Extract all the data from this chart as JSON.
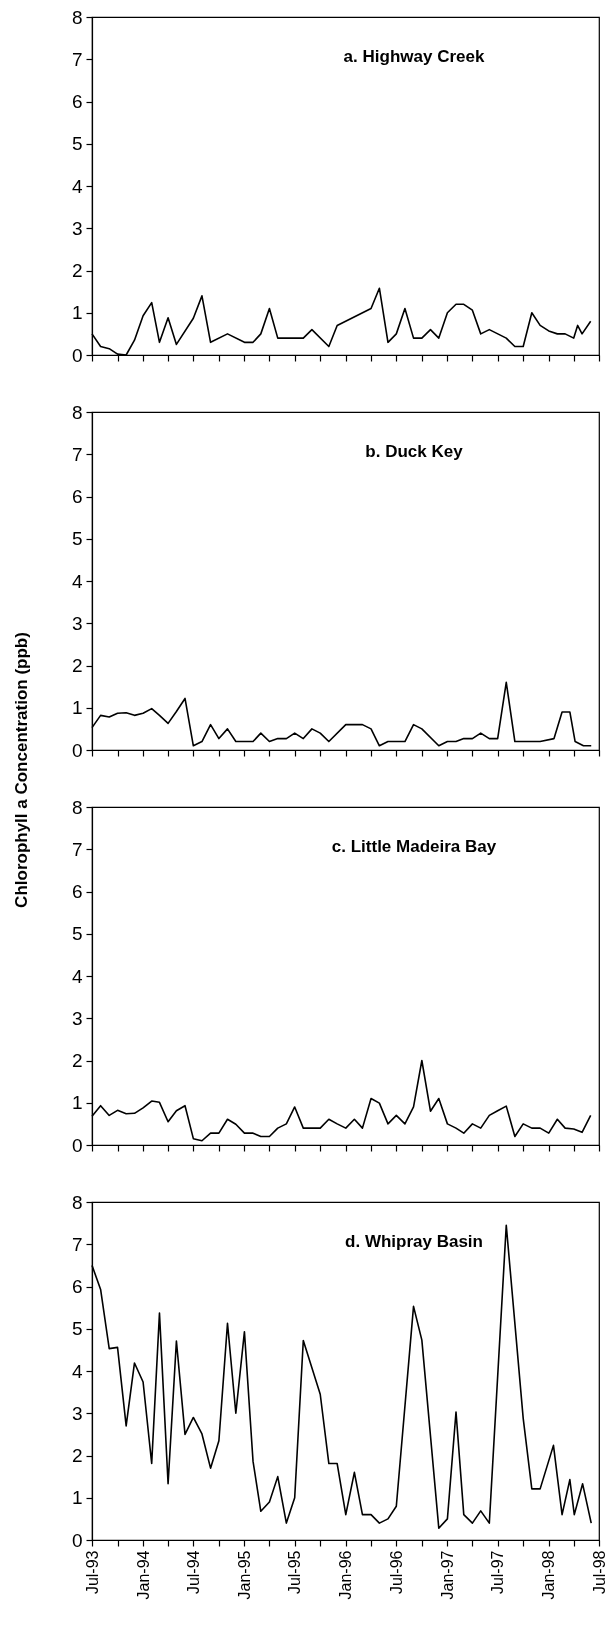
{
  "chart_data": [
    {
      "type": "line",
      "title": "a. Highway Creek",
      "tick_labels": "y",
      "ylim": [
        0,
        8
      ],
      "yticks": [
        0,
        1,
        2,
        3,
        4,
        5,
        6,
        7,
        8
      ],
      "xlim": [
        "1993-07",
        "1998-07"
      ],
      "xticks": [
        {
          "value": "1993-07",
          "label": null
        },
        {
          "value": "1993-10",
          "label": null
        },
        {
          "value": "1994-01",
          "label": null
        },
        {
          "value": "1994-04",
          "label": null
        },
        {
          "value": "1994-07",
          "label": null
        },
        {
          "value": "1994-10",
          "label": null
        },
        {
          "value": "1995-01",
          "label": null
        },
        {
          "value": "1995-04",
          "label": null
        },
        {
          "value": "1995-07",
          "label": null
        },
        {
          "value": "1995-10",
          "label": null
        },
        {
          "value": "1996-01",
          "label": null
        },
        {
          "value": "1996-04",
          "label": null
        },
        {
          "value": "1996-07",
          "label": null
        },
        {
          "value": "1996-10",
          "label": null
        },
        {
          "value": "1997-01",
          "label": null
        },
        {
          "value": "1997-04",
          "label": null
        },
        {
          "value": "1997-07",
          "label": null
        },
        {
          "value": "1997-10",
          "label": null
        },
        {
          "value": "1998-01",
          "label": null
        },
        {
          "value": "1998-04",
          "label": null
        },
        {
          "value": "1998-07",
          "label": null
        }
      ],
      "x": [
        "1993-07",
        "1993-08",
        "1993-09",
        "1993-10",
        "1993-11",
        "1993-12",
        "1994-01",
        "1994-02",
        "1994-03",
        "1994-04",
        "1994-05",
        "1994-07",
        "1994-08",
        "1994-09",
        "1994-11",
        "1995-01",
        "1995-02",
        "1995-03",
        "1995-04",
        "1995-05",
        "1995-08",
        "1995-09",
        "1995-11",
        "1995-12",
        "1996-04",
        "1996-05",
        "1996-06",
        "1996-07",
        "1996-08",
        "1996-09",
        "1996-10",
        "1996-11",
        "1996-12",
        "1997-01",
        "1997-02",
        "1997-03",
        "1997-04",
        "1997-05",
        "1997-06",
        "1997-08",
        "1997-09",
        "1997-10",
        "1997-11",
        "1997-12",
        "1998-01",
        "1998-02",
        "1998-03",
        "1998-04",
        "1998-04-15",
        "1998-05",
        "1998-06"
      ],
      "series": [
        {
          "color": "#000000",
          "values": [
            0.5,
            0.2,
            0.15,
            0.02,
            0,
            0.35,
            0.93,
            1.24,
            0.3,
            0.88,
            0.25,
            0.87,
            1.4,
            0.3,
            0.5,
            0.3,
            0.3,
            0.5,
            1.1,
            0.4,
            0.4,
            0.6,
            0.2,
            0.7,
            1.1,
            1.58,
            0.3,
            0.5,
            1.1,
            0.4,
            0.4,
            0.6,
            0.4,
            1.0,
            1.2,
            1.2,
            1.06,
            0.5,
            0.6,
            0.4,
            0.2,
            0.2,
            1.0,
            0.7,
            0.57,
            0.5,
            0.5,
            0.4,
            0.7,
            0.5,
            0.8
          ]
        }
      ]
    },
    {
      "type": "line",
      "title": "b. Duck Key",
      "ylabel": "Chlorophyll a Concentration (ppb)",
      "tick_labels": "y",
      "ylim": [
        0,
        8
      ],
      "yticks": [
        0,
        1,
        2,
        3,
        4,
        5,
        6,
        7,
        8
      ],
      "xlim": [
        "1993-07",
        "1998-07"
      ],
      "xticks": [
        {
          "value": "1993-07",
          "label": null
        },
        {
          "value": "1993-10",
          "label": null
        },
        {
          "value": "1994-01",
          "label": null
        },
        {
          "value": "1994-04",
          "label": null
        },
        {
          "value": "1994-07",
          "label": null
        },
        {
          "value": "1994-10",
          "label": null
        },
        {
          "value": "1995-01",
          "label": null
        },
        {
          "value": "1995-04",
          "label": null
        },
        {
          "value": "1995-07",
          "label": null
        },
        {
          "value": "1995-10",
          "label": null
        },
        {
          "value": "1996-01",
          "label": null
        },
        {
          "value": "1996-04",
          "label": null
        },
        {
          "value": "1996-07",
          "label": null
        },
        {
          "value": "1996-10",
          "label": null
        },
        {
          "value": "1997-01",
          "label": null
        },
        {
          "value": "1997-04",
          "label": null
        },
        {
          "value": "1997-07",
          "label": null
        },
        {
          "value": "1997-10",
          "label": null
        },
        {
          "value": "1998-01",
          "label": null
        },
        {
          "value": "1998-04",
          "label": null
        },
        {
          "value": "1998-07",
          "label": null
        }
      ],
      "x": [
        "1993-07",
        "1993-08",
        "1993-09",
        "1993-10",
        "1993-11",
        "1993-12",
        "1994-01",
        "1994-02",
        "1994-03",
        "1994-04",
        "1994-05",
        "1994-06",
        "1994-07",
        "1994-08",
        "1994-09",
        "1994-10",
        "1994-11",
        "1994-12",
        "1995-02",
        "1995-03",
        "1995-04",
        "1995-05",
        "1995-06",
        "1995-07",
        "1995-08",
        "1995-09",
        "1995-10",
        "1995-11",
        "1996-01",
        "1996-03",
        "1996-04",
        "1996-05",
        "1996-06",
        "1996-08",
        "1996-09",
        "1996-10",
        "1996-12",
        "1997-01",
        "1997-02",
        "1997-03",
        "1997-04",
        "1997-05",
        "1997-06",
        "1997-07",
        "1997-08",
        "1997-09",
        "1997-12",
        "1998-01-20",
        "1998-02-18",
        "1998-03-18",
        "1998-04-06",
        "1998-05-06",
        "1998-06-03"
      ],
      "series": [
        {
          "color": "#000000",
          "values": [
            0.53,
            0.82,
            0.78,
            0.87,
            0.88,
            0.82,
            0.87,
            0.98,
            0.82,
            0.63,
            0.91,
            1.22,
            0.1,
            0.2,
            0.6,
            0.27,
            0.5,
            0.2,
            0.2,
            0.4,
            0.2,
            0.27,
            0.27,
            0.4,
            0.27,
            0.5,
            0.4,
            0.2,
            0.6,
            0.6,
            0.5,
            0.1,
            0.2,
            0.2,
            0.6,
            0.5,
            0.1,
            0.2,
            0.2,
            0.27,
            0.27,
            0.4,
            0.27,
            0.27,
            1.6,
            0.2,
            0.2,
            0.27,
            0.9,
            0.9,
            0.2,
            0.1,
            0.1
          ]
        }
      ]
    },
    {
      "type": "line",
      "title": "c. Little Madeira Bay",
      "tick_labels": "y",
      "ylim": [
        0,
        8
      ],
      "yticks": [
        0,
        1,
        2,
        3,
        4,
        5,
        6,
        7,
        8
      ],
      "xlim": [
        "1993-07",
        "1998-07"
      ],
      "xticks": [
        {
          "value": "1993-07",
          "label": null
        },
        {
          "value": "1993-10",
          "label": null
        },
        {
          "value": "1994-01",
          "label": null
        },
        {
          "value": "1994-04",
          "label": null
        },
        {
          "value": "1994-07",
          "label": null
        },
        {
          "value": "1994-10",
          "label": null
        },
        {
          "value": "1995-01",
          "label": null
        },
        {
          "value": "1995-04",
          "label": null
        },
        {
          "value": "1995-07",
          "label": null
        },
        {
          "value": "1995-10",
          "label": null
        },
        {
          "value": "1996-01",
          "label": null
        },
        {
          "value": "1996-04",
          "label": null
        },
        {
          "value": "1996-07",
          "label": null
        },
        {
          "value": "1996-10",
          "label": null
        },
        {
          "value": "1997-01",
          "label": null
        },
        {
          "value": "1997-04",
          "label": null
        },
        {
          "value": "1997-07",
          "label": null
        },
        {
          "value": "1997-10",
          "label": null
        },
        {
          "value": "1998-01",
          "label": null
        },
        {
          "value": "1998-04",
          "label": null
        },
        {
          "value": "1998-07",
          "label": null
        }
      ],
      "x": [
        "1993-07",
        "1993-08",
        "1993-09",
        "1993-10",
        "1993-11",
        "1993-12",
        "1994-01",
        "1994-02",
        "1994-03",
        "1994-04",
        "1994-05",
        "1994-06",
        "1994-07",
        "1994-08",
        "1994-09",
        "1994-10",
        "1994-11",
        "1994-12",
        "1995-01",
        "1995-02",
        "1995-03",
        "1995-04",
        "1995-05",
        "1995-06",
        "1995-07",
        "1995-08",
        "1995-10",
        "1995-11",
        "1995-12",
        "1996-01",
        "1996-02",
        "1996-03",
        "1996-04",
        "1996-05",
        "1996-06",
        "1996-07",
        "1996-08",
        "1996-09",
        "1996-10",
        "1996-11",
        "1996-12",
        "1997-01",
        "1997-02",
        "1997-03",
        "1997-04",
        "1997-05",
        "1997-06",
        "1997-07",
        "1997-08",
        "1997-09",
        "1997-10",
        "1997-11",
        "1997-12",
        "1998-01",
        "1998-02",
        "1998-03",
        "1998-04",
        "1998-05",
        "1998-06"
      ],
      "series": [
        {
          "color": "#000000",
          "values": [
            0.68,
            0.93,
            0.7,
            0.82,
            0.74,
            0.75,
            0.88,
            1.04,
            1.01,
            0.55,
            0.81,
            0.93,
            0.15,
            0.1,
            0.28,
            0.28,
            0.61,
            0.49,
            0.28,
            0.28,
            0.2,
            0.2,
            0.4,
            0.5,
            0.9,
            0.4,
            0.4,
            0.61,
            0.5,
            0.4,
            0.61,
            0.4,
            1.1,
            0.99,
            0.5,
            0.7,
            0.5,
            0.9,
            2.0,
            0.8,
            1.1,
            0.5,
            0.4,
            0.28,
            0.5,
            0.4,
            0.7,
            0.81,
            0.92,
            0.2,
            0.5,
            0.4,
            0.4,
            0.28,
            0.61,
            0.4,
            0.38,
            0.3,
            0.7
          ]
        }
      ]
    },
    {
      "type": "line",
      "title": "d. Whipray Basin",
      "ylim": [
        0,
        8
      ],
      "yticks": [
        0,
        1,
        2,
        3,
        4,
        5,
        6,
        7,
        8
      ],
      "xlim": [
        "1993-07",
        "1998-07"
      ],
      "xticks": [
        {
          "value": "1993-07",
          "label": "Jul-93"
        },
        {
          "value": "1993-10",
          "label": null
        },
        {
          "value": "1994-01",
          "label": "Jan-94"
        },
        {
          "value": "1994-04",
          "label": null
        },
        {
          "value": "1994-07",
          "label": "Jul-94"
        },
        {
          "value": "1994-10",
          "label": null
        },
        {
          "value": "1995-01",
          "label": "Jan-95"
        },
        {
          "value": "1995-04",
          "label": null
        },
        {
          "value": "1995-07",
          "label": "Jul-95"
        },
        {
          "value": "1995-10",
          "label": null
        },
        {
          "value": "1996-01",
          "label": "Jan-96"
        },
        {
          "value": "1996-04",
          "label": null
        },
        {
          "value": "1996-07",
          "label": "Jul-96"
        },
        {
          "value": "1996-10",
          "label": null
        },
        {
          "value": "1997-01",
          "label": "Jan-97"
        },
        {
          "value": "1997-04",
          "label": null
        },
        {
          "value": "1997-07",
          "label": "Jul-97"
        },
        {
          "value": "1997-10",
          "label": null
        },
        {
          "value": "1998-01",
          "label": "Jan-98"
        },
        {
          "value": "1998-04",
          "label": null
        },
        {
          "value": "1998-07",
          "label": "Jul-98"
        }
      ],
      "x": [
        "1993-07",
        "1993-08",
        "1993-09",
        "1993-10",
        "1993-11",
        "1993-12",
        "1994-01",
        "1994-02",
        "1994-03",
        "1994-04",
        "1994-05",
        "1994-06",
        "1994-07",
        "1994-08",
        "1994-09",
        "1994-10",
        "1994-11",
        "1994-12",
        "1995-01",
        "1995-02",
        "1995-03",
        "1995-04",
        "1995-05",
        "1995-06",
        "1995-07",
        "1995-08",
        "1995-10",
        "1995-11",
        "1995-12",
        "1996-01",
        "1996-02",
        "1996-03",
        "1996-04",
        "1996-05",
        "1996-06",
        "1996-07",
        "1996-09",
        "1996-10",
        "1996-12",
        "1997-01",
        "1997-02",
        "1997-03",
        "1997-04",
        "1997-05",
        "1997-06",
        "1997-08",
        "1997-10",
        "1997-11",
        "1997-12",
        "1998-01-18",
        "1998-02-18",
        "1998-03-18",
        "1998-04-03",
        "1998-05-03",
        "1998-06-03"
      ],
      "series": [
        {
          "color": "#000000",
          "values": [
            6.5,
            5.93,
            4.53,
            4.56,
            2.7,
            4.19,
            3.74,
            1.81,
            5.37,
            1.33,
            4.71,
            2.5,
            2.9,
            2.51,
            1.7,
            2.35,
            5.13,
            3.0,
            4.93,
            1.86,
            0.68,
            0.9,
            1.5,
            0.4,
            1.0,
            4.72,
            3.45,
            1.81,
            1.81,
            0.6,
            1.6,
            0.6,
            0.6,
            0.4,
            0.5,
            0.8,
            5.53,
            4.73,
            0.28,
            0.5,
            3.03,
            0.6,
            0.4,
            0.69,
            0.4,
            7.45,
            2.88,
            1.21,
            1.21,
            2.24,
            0.6,
            1.43,
            0.6,
            1.33,
            0.4
          ]
        }
      ]
    }
  ]
}
